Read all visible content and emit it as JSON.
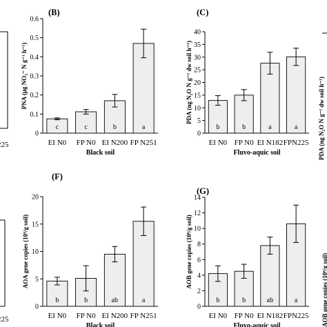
{
  "chart_data": [
    {
      "type": "bar",
      "panel": "(B)",
      "ylabel": "PNA (μg NO₃⁻ N g⁻¹ h⁻¹)",
      "xlabel": "Black soil",
      "categories": [
        "EI N0",
        "FP N0",
        "EI N200",
        "FP N251"
      ],
      "values": [
        0.075,
        0.112,
        0.17,
        0.47
      ],
      "errors": [
        0.005,
        0.012,
        0.033,
        0.075
      ],
      "letters": [
        "c",
        "c",
        "b",
        "a"
      ],
      "ylim": [
        0,
        0.6
      ],
      "yticks": [
        0,
        0.1,
        0.2,
        0.3,
        0.4,
        0.5,
        0.6
      ],
      "ytick_labels": [
        "0",
        "0.1",
        "0.2",
        "0.3",
        "0.4",
        "0.5",
        "0.6"
      ]
    },
    {
      "type": "bar",
      "panel": "(C)",
      "ylabel": "PDA (ng N₂O N g⁻¹ dw soil h⁻¹)",
      "xlabel": "Fluvo-aquic soil",
      "categories": [
        "EI N0",
        "FP N0",
        "EI N182",
        "FPN225"
      ],
      "values": [
        12.9,
        15.0,
        27.6,
        30.1
      ],
      "errors": [
        1.9,
        2.2,
        4.3,
        3.4
      ],
      "letters": [
        "b",
        "b",
        "a",
        "a"
      ],
      "ylim": [
        0,
        40
      ],
      "yticks": [
        0,
        5,
        10,
        15,
        20,
        25,
        30,
        35,
        40
      ],
      "ytick_labels": [
        "0",
        "5",
        "10",
        "15",
        "20",
        "25",
        "30",
        "35",
        "40"
      ]
    },
    {
      "type": "bar",
      "panel": "(F)",
      "ylabel": "AOA gene copies (10⁹/g soil)",
      "xlabel": "Black soil",
      "categories": [
        "EI N0",
        "FP N0",
        "EI N200",
        "FP N251"
      ],
      "values": [
        4.6,
        5.1,
        9.5,
        15.5
      ],
      "errors": [
        0.7,
        2.3,
        1.4,
        2.6
      ],
      "letters": [
        "b",
        "b",
        "ab",
        "a"
      ],
      "ylim": [
        0,
        20
      ],
      "yticks": [
        0,
        5,
        10,
        15,
        20
      ],
      "ytick_labels": [
        "0",
        "5",
        "10",
        "15",
        "20"
      ]
    },
    {
      "type": "bar",
      "panel": "(G)",
      "ylabel": "AOB gene copies (10⁸/g soil)",
      "xlabel": "Fluvo-aquic soil",
      "categories": [
        "EI N0",
        "FP N0",
        "EI N182",
        "FPN225"
      ],
      "values": [
        4.2,
        4.5,
        7.8,
        10.6
      ],
      "errors": [
        1.0,
        0.9,
        1.1,
        2.4
      ],
      "letters": [
        "b",
        "b",
        "ab",
        "a"
      ],
      "ylim": [
        0,
        14
      ],
      "yticks": [
        0,
        2,
        4,
        6,
        8,
        10,
        12,
        14
      ],
      "ytick_labels": [
        "0",
        "2",
        "4",
        "6",
        "8",
        "10",
        "12",
        "14"
      ]
    }
  ],
  "edge_fragments": {
    "top_left_label": "225",
    "bottom_left_label": "225",
    "top_right_ylabel": "PDA (ng N₂O N g⁻¹ dw soil h⁻¹)",
    "bottom_right_ylabel": "AOB gene copies (10⁸/g soil)"
  }
}
